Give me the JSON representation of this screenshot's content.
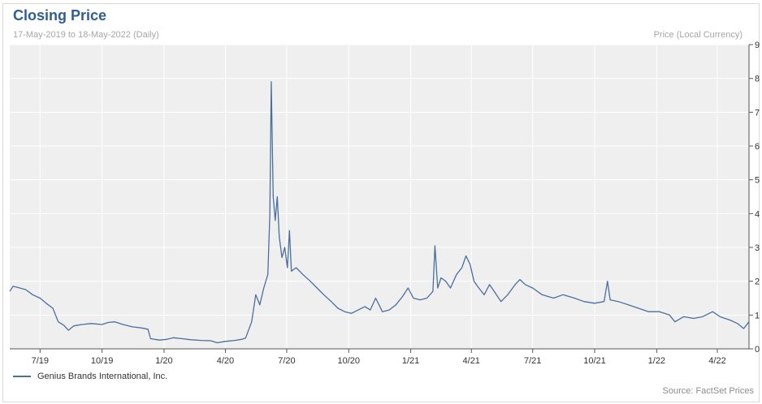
{
  "chart_data": {
    "type": "line",
    "title": "Closing Price",
    "subtitle": "17-May-2019 to 18-May-2022 (Daily)",
    "ylabel": "Price (Local Currency)",
    "source": "Source: FactSet Prices",
    "ylim": [
      0,
      9
    ],
    "y_ticks": [
      0,
      1,
      2,
      3,
      4,
      5,
      6,
      7,
      8,
      9
    ],
    "x_ticks": [
      {
        "label": "7/19",
        "date": "2019-07-01"
      },
      {
        "label": "10/19",
        "date": "2019-10-01"
      },
      {
        "label": "1/20",
        "date": "2020-01-01"
      },
      {
        "label": "4/20",
        "date": "2020-04-01"
      },
      {
        "label": "7/20",
        "date": "2020-07-01"
      },
      {
        "label": "10/20",
        "date": "2020-10-01"
      },
      {
        "label": "1/21",
        "date": "2021-01-01"
      },
      {
        "label": "4/21",
        "date": "2021-04-01"
      },
      {
        "label": "7/21",
        "date": "2021-07-01"
      },
      {
        "label": "10/21",
        "date": "2021-10-01"
      },
      {
        "label": "1/22",
        "date": "2022-01-01"
      },
      {
        "label": "4/22",
        "date": "2022-04-01"
      }
    ],
    "x_range": [
      "2019-05-17",
      "2022-05-18"
    ],
    "grid": true,
    "legend_position": "bottom-left",
    "colors": {
      "line": "#4a6f9e",
      "plot_bg": "#efefef",
      "grid": "#ffffff",
      "title": "#2f5d95"
    },
    "series": [
      {
        "name": "Genius Brands International, Inc.",
        "points": [
          [
            "2019-05-17",
            1.7
          ],
          [
            "2019-05-22",
            1.85
          ],
          [
            "2019-06-01",
            1.8
          ],
          [
            "2019-06-10",
            1.75
          ],
          [
            "2019-06-20",
            1.6
          ],
          [
            "2019-07-01",
            1.5
          ],
          [
            "2019-07-10",
            1.35
          ],
          [
            "2019-07-20",
            1.2
          ],
          [
            "2019-07-28",
            0.8
          ],
          [
            "2019-08-05",
            0.7
          ],
          [
            "2019-08-12",
            0.55
          ],
          [
            "2019-08-20",
            0.68
          ],
          [
            "2019-09-01",
            0.72
          ],
          [
            "2019-09-15",
            0.75
          ],
          [
            "2019-10-01",
            0.72
          ],
          [
            "2019-10-10",
            0.78
          ],
          [
            "2019-10-20",
            0.8
          ],
          [
            "2019-11-01",
            0.72
          ],
          [
            "2019-11-15",
            0.65
          ],
          [
            "2019-11-28",
            0.62
          ],
          [
            "2019-12-08",
            0.58
          ],
          [
            "2019-12-12",
            0.3
          ],
          [
            "2019-12-25",
            0.26
          ],
          [
            "2020-01-05",
            0.28
          ],
          [
            "2020-01-15",
            0.33
          ],
          [
            "2020-01-28",
            0.3
          ],
          [
            "2020-02-10",
            0.27
          ],
          [
            "2020-02-25",
            0.25
          ],
          [
            "2020-03-10",
            0.24
          ],
          [
            "2020-03-20",
            0.18
          ],
          [
            "2020-04-01",
            0.22
          ],
          [
            "2020-04-15",
            0.25
          ],
          [
            "2020-04-25",
            0.28
          ],
          [
            "2020-05-01",
            0.32
          ],
          [
            "2020-05-10",
            0.8
          ],
          [
            "2020-05-16",
            1.6
          ],
          [
            "2020-05-22",
            1.3
          ],
          [
            "2020-05-28",
            1.8
          ],
          [
            "2020-06-03",
            2.2
          ],
          [
            "2020-06-06",
            4.0
          ],
          [
            "2020-06-08",
            7.9
          ],
          [
            "2020-06-11",
            4.5
          ],
          [
            "2020-06-14",
            3.8
          ],
          [
            "2020-06-17",
            4.5
          ],
          [
            "2020-06-20",
            3.3
          ],
          [
            "2020-06-24",
            2.7
          ],
          [
            "2020-06-28",
            3.0
          ],
          [
            "2020-07-02",
            2.4
          ],
          [
            "2020-07-05",
            3.5
          ],
          [
            "2020-07-08",
            2.3
          ],
          [
            "2020-07-15",
            2.4
          ],
          [
            "2020-07-25",
            2.2
          ],
          [
            "2020-08-05",
            2.0
          ],
          [
            "2020-08-15",
            1.8
          ],
          [
            "2020-08-25",
            1.6
          ],
          [
            "2020-09-05",
            1.4
          ],
          [
            "2020-09-15",
            1.2
          ],
          [
            "2020-09-25",
            1.1
          ],
          [
            "2020-10-05",
            1.05
          ],
          [
            "2020-10-15",
            1.15
          ],
          [
            "2020-10-25",
            1.25
          ],
          [
            "2020-11-02",
            1.15
          ],
          [
            "2020-11-10",
            1.5
          ],
          [
            "2020-11-15",
            1.3
          ],
          [
            "2020-11-20",
            1.1
          ],
          [
            "2020-11-30",
            1.15
          ],
          [
            "2020-12-10",
            1.3
          ],
          [
            "2020-12-20",
            1.55
          ],
          [
            "2020-12-28",
            1.8
          ],
          [
            "2021-01-05",
            1.5
          ],
          [
            "2021-01-15",
            1.45
          ],
          [
            "2021-01-25",
            1.5
          ],
          [
            "2021-02-03",
            1.7
          ],
          [
            "2021-02-06",
            3.05
          ],
          [
            "2021-02-10",
            1.8
          ],
          [
            "2021-02-15",
            2.1
          ],
          [
            "2021-02-22",
            2.0
          ],
          [
            "2021-03-01",
            1.8
          ],
          [
            "2021-03-10",
            2.2
          ],
          [
            "2021-03-18",
            2.4
          ],
          [
            "2021-03-24",
            2.75
          ],
          [
            "2021-03-30",
            2.5
          ],
          [
            "2021-04-05",
            2.0
          ],
          [
            "2021-04-12",
            1.8
          ],
          [
            "2021-04-20",
            1.6
          ],
          [
            "2021-04-28",
            1.9
          ],
          [
            "2021-05-05",
            1.7
          ],
          [
            "2021-05-15",
            1.4
          ],
          [
            "2021-05-25",
            1.6
          ],
          [
            "2021-06-05",
            1.9
          ],
          [
            "2021-06-12",
            2.05
          ],
          [
            "2021-06-20",
            1.9
          ],
          [
            "2021-07-01",
            1.8
          ],
          [
            "2021-07-15",
            1.6
          ],
          [
            "2021-08-01",
            1.5
          ],
          [
            "2021-08-15",
            1.6
          ],
          [
            "2021-09-01",
            1.5
          ],
          [
            "2021-09-15",
            1.4
          ],
          [
            "2021-10-01",
            1.35
          ],
          [
            "2021-10-15",
            1.4
          ],
          [
            "2021-10-20",
            2.0
          ],
          [
            "2021-10-24",
            1.45
          ],
          [
            "2021-11-05",
            1.4
          ],
          [
            "2021-11-20",
            1.3
          ],
          [
            "2021-12-05",
            1.2
          ],
          [
            "2021-12-20",
            1.1
          ],
          [
            "2022-01-05",
            1.1
          ],
          [
            "2022-01-20",
            1.0
          ],
          [
            "2022-01-28",
            0.8
          ],
          [
            "2022-02-10",
            0.95
          ],
          [
            "2022-02-25",
            0.9
          ],
          [
            "2022-03-10",
            0.95
          ],
          [
            "2022-03-25",
            1.1
          ],
          [
            "2022-04-05",
            0.95
          ],
          [
            "2022-04-20",
            0.85
          ],
          [
            "2022-05-01",
            0.75
          ],
          [
            "2022-05-10",
            0.6
          ],
          [
            "2022-05-18",
            0.8
          ]
        ]
      }
    ]
  }
}
